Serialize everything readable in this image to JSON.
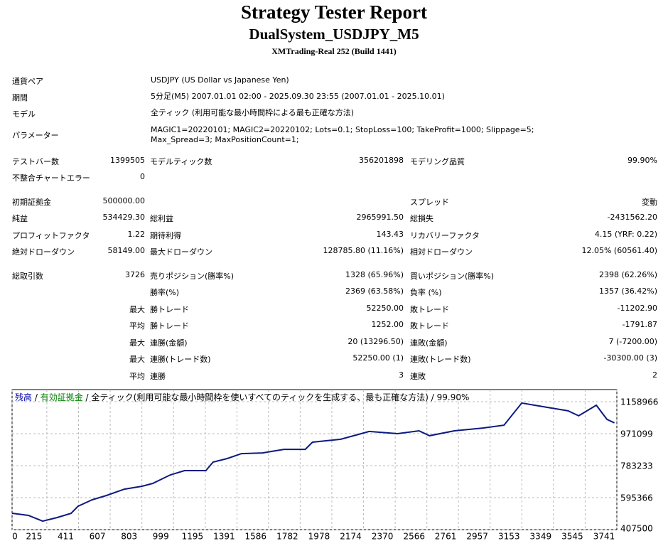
{
  "header": {
    "title": "Strategy Tester Report",
    "subtitle": "DualSystem_USDJPY_M5",
    "server": "XMTrading-Real 252 (Build 1441)"
  },
  "info": [
    [
      "通貨ペア",
      "USDJPY (US Dollar vs Japanese Yen)"
    ],
    [
      "期間",
      "5分足(M5) 2007.01.01 02:00 - 2025.09.30 23:55 (2007.01.01 - 2025.10.01)"
    ],
    [
      "モデル",
      "全ティック (利用可能な最小時間枠による最も正確な方法)"
    ],
    [
      "パラメーター",
      "MAGIC1=20220101; MAGIC2=20220102; Lots=0.1; StopLoss=100; TakeProfit=1000; Slippage=5; Max_Spread=3; MaxPositionCount=1;"
    ]
  ],
  "stats": [
    [
      [
        "テストバー数",
        "1399505",
        "モデルティック数",
        "356201898",
        "モデリング品質",
        "99.90%"
      ],
      [
        "不整合チャートエラー",
        "0",
        null,
        null,
        null,
        null
      ]
    ],
    [
      [
        "初期証拠金",
        "500000.00",
        null,
        null,
        "スプレッド",
        "変動"
      ],
      [
        "純益",
        "534429.30",
        "総利益",
        "2965991.50",
        "総損失",
        "-2431562.20"
      ],
      [
        "プロフィットファクタ",
        "1.22",
        "期待利得",
        "143.43",
        "リカバリーファクタ",
        "4.15 (YRF: 0.22)"
      ],
      [
        "絶対ドローダウン",
        "58149.00",
        "最大ドローダウン",
        "128785.80 (11.16%)",
        "相対ドローダウン",
        "12.05% (60561.40)"
      ]
    ],
    [
      [
        "総取引数",
        "3726",
        "売りポジション(勝率%)",
        "1328 (65.96%)",
        "買いポジション(勝率%)",
        "2398 (62.26%)"
      ],
      [
        null,
        null,
        "勝率(%)",
        "2369 (63.58%)",
        "負率 (%)",
        "1357 (36.42%)"
      ],
      [
        null,
        "最大",
        "勝トレード",
        "52250.00",
        "敗トレード",
        "-11202.90"
      ],
      [
        null,
        "平均",
        "勝トレード",
        "1252.00",
        "敗トレード",
        "-1791.87"
      ],
      [
        null,
        "最大",
        "連勝(金額)",
        "20 (13296.50)",
        "連敗(金額)",
        "7 (-7200.00)"
      ],
      [
        null,
        "最大",
        "連勝(トレード数)",
        "52250.00 (1)",
        "連敗(トレード数)",
        "-30300.00 (3)"
      ],
      [
        null,
        "平均",
        "連勝",
        "3",
        "連敗",
        "2"
      ]
    ]
  ],
  "chart_data": {
    "type": "line",
    "legend": [
      {
        "text": "残高",
        "color": "#0000aa"
      },
      {
        "text": " / ",
        "color": "#000000"
      },
      {
        "text": "有効証拠金",
        "color": "#008000"
      },
      {
        "text": " / 全ティック(利用可能な最小時間枠を使いすべてのティックを生成する、最も正確な方法) / 99.90%",
        "color": "#000000"
      }
    ],
    "xlim": [
      0,
      3741
    ],
    "ylim": [
      407500,
      1230000
    ],
    "xticks": [
      0,
      215,
      411,
      607,
      803,
      999,
      1195,
      1391,
      1586,
      1782,
      1978,
      2174,
      2370,
      2566,
      2761,
      2957,
      3153,
      3349,
      3545,
      3741
    ],
    "yticks": [
      407500,
      595366,
      783233,
      971099,
      1158966
    ],
    "grid": true,
    "series": [
      {
        "color": "#0d1a80",
        "x": [
          0,
          101,
          189,
          277,
          365,
          408,
          496,
          584,
          694,
          804,
          870,
          979,
          1067,
          1199,
          1243,
          1331,
          1419,
          1550,
          1682,
          1814,
          1858,
          2033,
          2209,
          2385,
          2517,
          2582,
          2736,
          2912,
          3043,
          3153,
          3307,
          3439,
          3505,
          3614,
          3680,
          3726
        ],
        "values": [
          503500,
          491000,
          457000,
          478000,
          503000,
          545000,
          583000,
          608000,
          645000,
          662000,
          679000,
          729000,
          754000,
          754000,
          804000,
          825000,
          854000,
          858000,
          879000,
          879000,
          921000,
          938000,
          984000,
          971000,
          988000,
          959000,
          988000,
          1004000,
          1021000,
          1151000,
          1126000,
          1105000,
          1076000,
          1138000,
          1055000,
          1034429
        ]
      }
    ]
  }
}
